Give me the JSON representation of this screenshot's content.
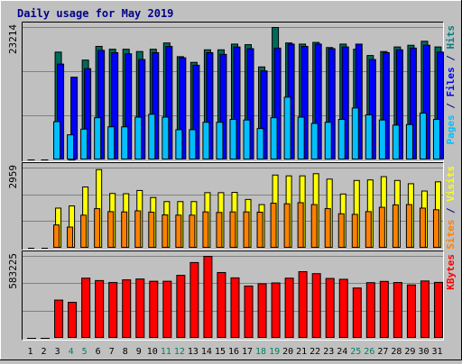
{
  "chart_data": {
    "type": "bar",
    "title": "Daily usage for May 2019",
    "categories": [
      "1",
      "2",
      "3",
      "4",
      "5",
      "6",
      "7",
      "8",
      "9",
      "10",
      "11",
      "12",
      "13",
      "14",
      "15",
      "16",
      "17",
      "18",
      "19",
      "20",
      "21",
      "22",
      "23",
      "24",
      "25",
      "26",
      "27",
      "28",
      "29",
      "30",
      "31"
    ],
    "weekend_days": [
      "4",
      "5",
      "11",
      "12",
      "18",
      "19",
      "25",
      "26"
    ],
    "panels": [
      {
        "id": "hits-files-pages",
        "ymax_label": "23214",
        "ymax": 23214,
        "axis_labels": [
          {
            "text": "Pages",
            "color": "#00c0ff"
          },
          {
            "text": " / ",
            "color": "#00008b"
          },
          {
            "text": "Files",
            "color": "#0000ff"
          },
          {
            "text": " / ",
            "color": "#00008b"
          },
          {
            "text": "Hits",
            "color": "#008080"
          }
        ],
        "series": [
          {
            "name": "Hits",
            "color": "#006a5a",
            "values": [
              0,
              0,
              18900,
              0,
              17500,
              19900,
              19400,
              19400,
              19000,
              19400,
              20500,
              18100,
              17100,
              19300,
              19300,
              20300,
              20200,
              16300,
              23214,
              20500,
              20300,
              20600,
              19700,
              20300,
              19400,
              18300,
              19000,
              19800,
              20100,
              20800,
              19800
            ]
          },
          {
            "name": "Files",
            "color": "#0000ff",
            "values": [
              0,
              0,
              16800,
              14500,
              16000,
              19200,
              18800,
              18600,
              17600,
              18800,
              19900,
              17900,
              16600,
              18800,
              18500,
              19800,
              19500,
              15600,
              19600,
              20300,
              19900,
              20300,
              19500,
              19800,
              20300,
              17600,
              18800,
              19300,
              19600,
              20100,
              18900
            ]
          },
          {
            "name": "Pages",
            "color": "#00c0ff",
            "values": [
              0,
              0,
              6700,
              4400,
              5400,
              7400,
              5800,
              5800,
              7500,
              8000,
              7500,
              5300,
              5300,
              6600,
              6600,
              7100,
              7000,
              5500,
              7400,
              11000,
              7500,
              6400,
              6600,
              7100,
              9100,
              7900,
              7000,
              6100,
              6200,
              8200,
              7100
            ]
          }
        ]
      },
      {
        "id": "visits-sites",
        "ymax_label": "2959",
        "ymax": 2959,
        "axis_labels": [
          {
            "text": "Sites",
            "color": "#ff8000"
          },
          {
            "text": " / ",
            "color": "#00008b"
          },
          {
            "text": "Visits",
            "color": "#ffff00"
          }
        ],
        "series": [
          {
            "name": "Visits",
            "color": "#ffff00",
            "values": [
              0,
              0,
              1480,
              1560,
              2260,
              2900,
              2020,
              2010,
              2130,
              1870,
              1720,
              1720,
              1720,
              2050,
              2050,
              2060,
              1800,
              1610,
              2700,
              2670,
              2670,
              2750,
              2550,
              2000,
              2500,
              2520,
              2640,
              2500,
              2380,
              2110,
              2450
            ]
          },
          {
            "name": "Sites",
            "color": "#ff8000",
            "values": [
              0,
              0,
              860,
              780,
              1220,
              1460,
              1350,
              1340,
              1380,
              1330,
              1230,
              1220,
              1220,
              1340,
              1320,
              1340,
              1340,
              1330,
              1660,
              1640,
              1680,
              1610,
              1460,
              1270,
              1250,
              1350,
              1510,
              1600,
              1610,
              1480,
              1420
            ]
          }
        ]
      },
      {
        "id": "kbytes",
        "ymax_label": "583225",
        "ymax": 583225,
        "axis_labels": [
          {
            "text": "KBytes",
            "color": "#ff0000"
          }
        ],
        "series": [
          {
            "name": "KBytes",
            "color": "#ff0000",
            "values": [
              0,
              0,
              272000,
              256000,
              428000,
              411000,
              397000,
              416000,
              422000,
              406000,
              406000,
              448000,
              539000,
              583225,
              468000,
              430000,
              372000,
              388000,
              394000,
              428000,
              474000,
              460000,
              426000,
              420000,
              358000,
              396000,
              405000,
              397000,
              380000,
              408000,
              398000
            ]
          }
        ]
      }
    ]
  }
}
